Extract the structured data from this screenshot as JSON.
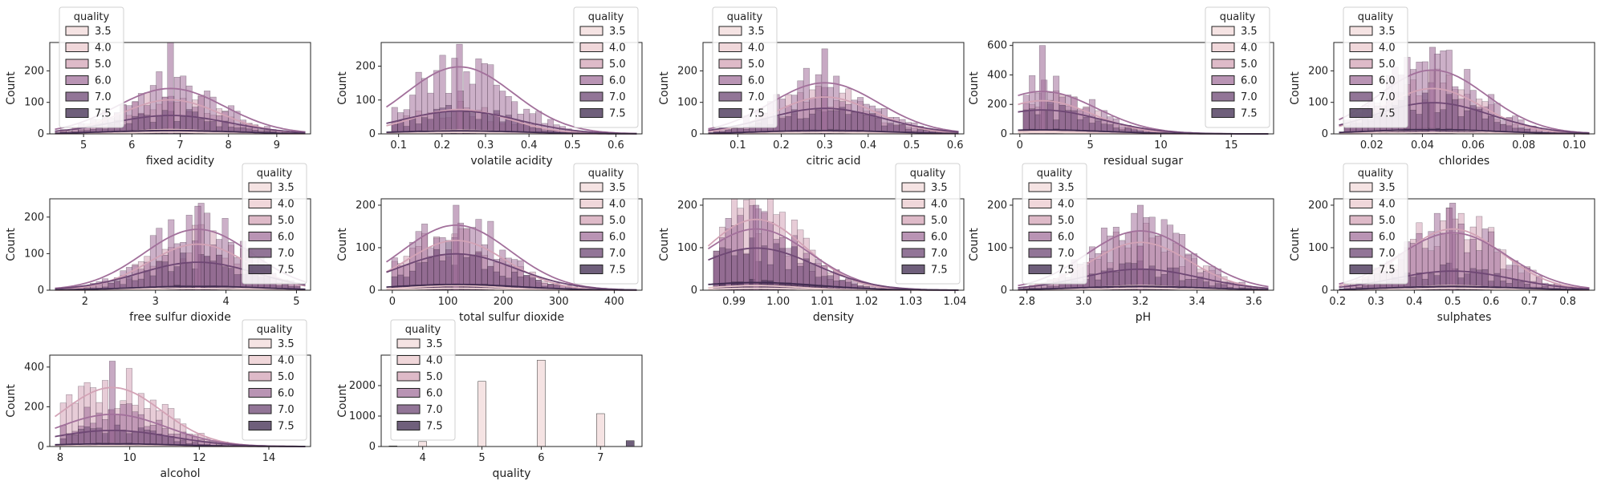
{
  "figure": {
    "background": "#ffffff"
  },
  "legend": {
    "title": "quality",
    "entries": [
      "3.5",
      "4.0",
      "5.0",
      "6.0",
      "7.0",
      "7.5"
    ],
    "colors": [
      "#f2d9d9",
      "#ebc9cd",
      "#d3a3b6",
      "#a2709b",
      "#6e4774",
      "#3f2a4f"
    ]
  },
  "chart_data": [
    {
      "type": "bar",
      "title": "",
      "xlabel": "fixed acidity",
      "ylabel": "Count",
      "xlim": [
        4.3,
        9.7
      ],
      "ylim": [
        0,
        290
      ],
      "xticks": [
        5,
        6,
        7,
        8,
        9
      ],
      "yticks": [
        0,
        100,
        200
      ],
      "peak_x": 6.8,
      "peak_y": 290,
      "kde_peak": 160,
      "legend_loc": "upper left",
      "series": [
        {
          "name": "3.5",
          "peak": 6
        },
        {
          "name": "4.0",
          "peak": 15
        },
        {
          "name": "5.0",
          "peak": 120
        },
        {
          "name": "6.0",
          "peak": 160
        },
        {
          "name": "7.0",
          "peak": 65
        },
        {
          "name": "7.5",
          "peak": 12
        }
      ]
    },
    {
      "type": "bar",
      "title": "",
      "xlabel": "volatile acidity",
      "ylabel": "Count",
      "xlim": [
        0.06,
        0.66
      ],
      "ylim": [
        0,
        270
      ],
      "xticks": [
        0.1,
        0.2,
        0.3,
        0.4,
        0.5,
        0.6
      ],
      "yticks": [
        0,
        100,
        200
      ],
      "peak_x": 0.24,
      "peak_y": 265,
      "kde_peak": 220,
      "legend_loc": "upper right",
      "series": [
        {
          "name": "3.5",
          "peak": 5
        },
        {
          "name": "4.0",
          "peak": 12
        },
        {
          "name": "5.0",
          "peak": 80
        },
        {
          "name": "6.0",
          "peak": 220
        },
        {
          "name": "7.0",
          "peak": 75
        },
        {
          "name": "7.5",
          "peak": 10
        }
      ]
    },
    {
      "type": "bar",
      "title": "",
      "xlabel": "citric acid",
      "ylabel": "Count",
      "xlim": [
        0.02,
        0.62
      ],
      "ylim": [
        0,
        290
      ],
      "xticks": [
        0.1,
        0.2,
        0.3,
        0.4,
        0.5,
        0.6
      ],
      "yticks": [
        0,
        100,
        200
      ],
      "peak_x": 0.3,
      "peak_y": 270,
      "kde_peak": 180,
      "legend_loc": "upper left",
      "series": [
        {
          "name": "3.5",
          "peak": 5
        },
        {
          "name": "4.0",
          "peak": 12
        },
        {
          "name": "5.0",
          "peak": 130
        },
        {
          "name": "6.0",
          "peak": 180
        },
        {
          "name": "7.0",
          "peak": 90
        },
        {
          "name": "7.5",
          "peak": 12
        }
      ]
    },
    {
      "type": "bar",
      "title": "",
      "xlabel": "residual sugar",
      "ylabel": "Count",
      "xlim": [
        -0.5,
        18.0
      ],
      "ylim": [
        0,
        620
      ],
      "xticks": [
        0,
        5,
        10,
        15
      ],
      "yticks": [
        0,
        200,
        400,
        600
      ],
      "peak_x": 1.6,
      "peak_y": 600,
      "kde_peak": 320,
      "legend_loc": "upper right",
      "series": [
        {
          "name": "3.5",
          "peak": 10
        },
        {
          "name": "4.0",
          "peak": 20
        },
        {
          "name": "5.0",
          "peak": 250
        },
        {
          "name": "6.0",
          "peak": 320
        },
        {
          "name": "7.0",
          "peak": 180
        },
        {
          "name": "7.5",
          "peak": 30
        }
      ]
    },
    {
      "type": "bar",
      "title": "",
      "xlabel": "chlorides",
      "ylabel": "Count",
      "xlim": [
        0.005,
        0.108
      ],
      "ylim": [
        0,
        290
      ],
      "xticks": [
        0.02,
        0.04,
        0.06,
        0.08,
        0.1
      ],
      "xtick_labels": [
        "0.02",
        "0.04",
        "0.06",
        "0.08",
        "0.10"
      ],
      "yticks": [
        0,
        100,
        200
      ],
      "peak_x": 0.044,
      "peak_y": 275,
      "kde_peak": 225,
      "legend_loc": "upper left",
      "series": [
        {
          "name": "3.5",
          "peak": 5
        },
        {
          "name": "4.0",
          "peak": 15
        },
        {
          "name": "5.0",
          "peak": 160
        },
        {
          "name": "6.0",
          "peak": 225
        },
        {
          "name": "7.0",
          "peak": 110
        },
        {
          "name": "7.5",
          "peak": 15
        }
      ]
    },
    {
      "type": "bar",
      "title": "",
      "xlabel": "free sulfur dioxide",
      "ylabel": "Count",
      "xlim": [
        1.5,
        5.2
      ],
      "ylim": [
        0,
        250
      ],
      "xticks": [
        2,
        3,
        4,
        5
      ],
      "yticks": [
        0,
        100,
        200
      ],
      "peak_x": 3.6,
      "peak_y": 230,
      "kde_peak": 185,
      "legend_loc": "upper right",
      "series": [
        {
          "name": "3.5",
          "peak": 5
        },
        {
          "name": "4.0",
          "peak": 12
        },
        {
          "name": "5.0",
          "peak": 140
        },
        {
          "name": "6.0",
          "peak": 185
        },
        {
          "name": "7.0",
          "peak": 85
        },
        {
          "name": "7.5",
          "peak": 12
        }
      ]
    },
    {
      "type": "bar",
      "title": "",
      "xlabel": "total sulfur dioxide",
      "ylabel": "Count",
      "xlim": [
        -20,
        450
      ],
      "ylim": [
        0,
        215
      ],
      "xticks": [
        0,
        100,
        200,
        300,
        400
      ],
      "yticks": [
        0,
        100,
        200
      ],
      "peak_x": 115,
      "peak_y": 200,
      "kde_peak": 170,
      "legend_loc": "upper right",
      "series": [
        {
          "name": "3.5",
          "peak": 5
        },
        {
          "name": "4.0",
          "peak": 12
        },
        {
          "name": "5.0",
          "peak": 130
        },
        {
          "name": "6.0",
          "peak": 170
        },
        {
          "name": "7.0",
          "peak": 95
        },
        {
          "name": "7.5",
          "peak": 15
        }
      ]
    },
    {
      "type": "bar",
      "title": "",
      "xlabel": "density",
      "ylabel": "Count",
      "xlim": [
        0.983,
        1.042
      ],
      "ylim": [
        0,
        215
      ],
      "xticks": [
        0.99,
        1.0,
        1.01,
        1.02,
        1.03,
        1.04
      ],
      "xtick_labels": [
        "0.99",
        "1.00",
        "1.01",
        "1.02",
        "1.03",
        "1.04"
      ],
      "yticks": [
        0,
        100,
        200
      ],
      "peak_x": 0.995,
      "peak_y": 200,
      "kde_peak": 185,
      "legend_loc": "upper right",
      "series": [
        {
          "name": "3.5",
          "peak": 5
        },
        {
          "name": "4.0",
          "peak": 12
        },
        {
          "name": "5.0",
          "peak": 185
        },
        {
          "name": "6.0",
          "peak": 160
        },
        {
          "name": "7.0",
          "peak": 110
        },
        {
          "name": "7.5",
          "peak": 20
        }
      ]
    },
    {
      "type": "bar",
      "title": "",
      "xlabel": "pH",
      "ylabel": "Count",
      "xlim": [
        2.75,
        3.67
      ],
      "ylim": [
        0,
        215
      ],
      "xticks": [
        2.8,
        3.0,
        3.2,
        3.4,
        3.6
      ],
      "xtick_labels": [
        "2.8",
        "3.0",
        "3.2",
        "3.4",
        "3.6"
      ],
      "yticks": [
        0,
        100,
        200
      ],
      "peak_x": 3.2,
      "peak_y": 200,
      "kde_peak": 155,
      "legend_loc": "upper left",
      "series": [
        {
          "name": "3.5",
          "peak": 5
        },
        {
          "name": "4.0",
          "peak": 12
        },
        {
          "name": "5.0",
          "peak": 125
        },
        {
          "name": "6.0",
          "peak": 155
        },
        {
          "name": "7.0",
          "peak": 55
        },
        {
          "name": "7.5",
          "peak": 10
        }
      ]
    },
    {
      "type": "bar",
      "title": "",
      "xlabel": "sulphates",
      "ylabel": "Count",
      "xlim": [
        0.19,
        0.87
      ],
      "ylim": [
        0,
        215
      ],
      "xticks": [
        0.2,
        0.3,
        0.4,
        0.5,
        0.6,
        0.7,
        0.8
      ],
      "yticks": [
        0,
        100,
        200
      ],
      "peak_x": 0.5,
      "peak_y": 205,
      "kde_peak": 160,
      "legend_loc": "upper left",
      "series": [
        {
          "name": "3.5",
          "peak": 5
        },
        {
          "name": "4.0",
          "peak": 12
        },
        {
          "name": "5.0",
          "peak": 160
        },
        {
          "name": "6.0",
          "peak": 150
        },
        {
          "name": "7.0",
          "peak": 50
        },
        {
          "name": "7.5",
          "peak": 10
        }
      ]
    },
    {
      "type": "bar",
      "title": "",
      "xlabel": "alcohol",
      "ylabel": "Count",
      "xlim": [
        7.7,
        15.2
      ],
      "ylim": [
        0,
        460
      ],
      "xticks": [
        8,
        10,
        12,
        14
      ],
      "yticks": [
        0,
        200,
        400
      ],
      "peak_x": 9.5,
      "peak_y": 430,
      "kde_peak": 330,
      "legend_loc": "upper right",
      "series": [
        {
          "name": "3.5",
          "peak": 5
        },
        {
          "name": "4.0",
          "peak": 15
        },
        {
          "name": "5.0",
          "peak": 330
        },
        {
          "name": "6.0",
          "peak": 180
        },
        {
          "name": "7.0",
          "peak": 90
        },
        {
          "name": "7.5",
          "peak": 15
        }
      ]
    },
    {
      "type": "bar",
      "title": "",
      "xlabel": "quality",
      "ylabel": "Count",
      "xlim": [
        3.3,
        7.7
      ],
      "ylim": [
        0,
        3000
      ],
      "xticks": [
        4,
        5,
        6,
        7
      ],
      "yticks": [
        0,
        1000,
        2000
      ],
      "legend_loc": "upper left",
      "bars": [
        {
          "x": 3.5,
          "value": 20
        },
        {
          "x": 4.0,
          "value": 163
        },
        {
          "x": 5.0,
          "value": 2138
        },
        {
          "x": 6.0,
          "value": 2836
        },
        {
          "x": 7.0,
          "value": 1079
        },
        {
          "x": 7.5,
          "value": 193
        }
      ]
    }
  ]
}
